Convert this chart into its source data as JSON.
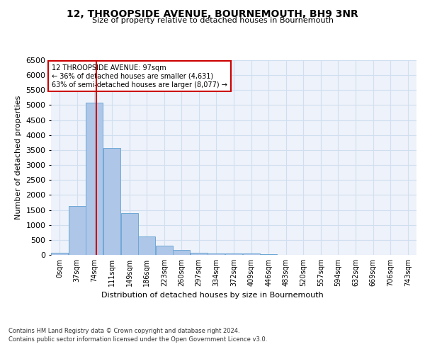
{
  "title": "12, THROOPSIDE AVENUE, BOURNEMOUTH, BH9 3NR",
  "subtitle": "Size of property relative to detached houses in Bournemouth",
  "xlabel": "Distribution of detached houses by size in Bournemouth",
  "ylabel": "Number of detached properties",
  "bar_color": "#aec6e8",
  "bar_edge_color": "#6fa8d6",
  "grid_color": "#d0dff0",
  "background_color": "#eef2fa",
  "property_line_color": "#cc0000",
  "property_sqm": 97,
  "annotation_text": "12 THROOPSIDE AVENUE: 97sqm\n← 36% of detached houses are smaller (4,631)\n63% of semi-detached houses are larger (8,077) →",
  "annotation_box_color": "#ffffff",
  "annotation_box_edge_color": "#cc0000",
  "bin_labels": [
    "0sqm",
    "37sqm",
    "74sqm",
    "111sqm",
    "149sqm",
    "186sqm",
    "223sqm",
    "260sqm",
    "297sqm",
    "334sqm",
    "372sqm",
    "409sqm",
    "446sqm",
    "483sqm",
    "520sqm",
    "557sqm",
    "594sqm",
    "632sqm",
    "669sqm",
    "706sqm",
    "743sqm"
  ],
  "bin_edges": [
    0,
    37,
    74,
    111,
    149,
    186,
    223,
    260,
    297,
    334,
    372,
    409,
    446,
    483,
    520,
    557,
    594,
    632,
    669,
    706,
    743
  ],
  "bar_heights": [
    70,
    1620,
    5080,
    3570,
    1400,
    620,
    310,
    155,
    80,
    55,
    55,
    50,
    25,
    5,
    5,
    5,
    5,
    5,
    5,
    5
  ],
  "ylim": [
    0,
    6500
  ],
  "yticks": [
    0,
    500,
    1000,
    1500,
    2000,
    2500,
    3000,
    3500,
    4000,
    4500,
    5000,
    5500,
    6000,
    6500
  ],
  "footer_line1": "Contains HM Land Registry data © Crown copyright and database right 2024.",
  "footer_line2": "Contains public sector information licensed under the Open Government Licence v3.0."
}
